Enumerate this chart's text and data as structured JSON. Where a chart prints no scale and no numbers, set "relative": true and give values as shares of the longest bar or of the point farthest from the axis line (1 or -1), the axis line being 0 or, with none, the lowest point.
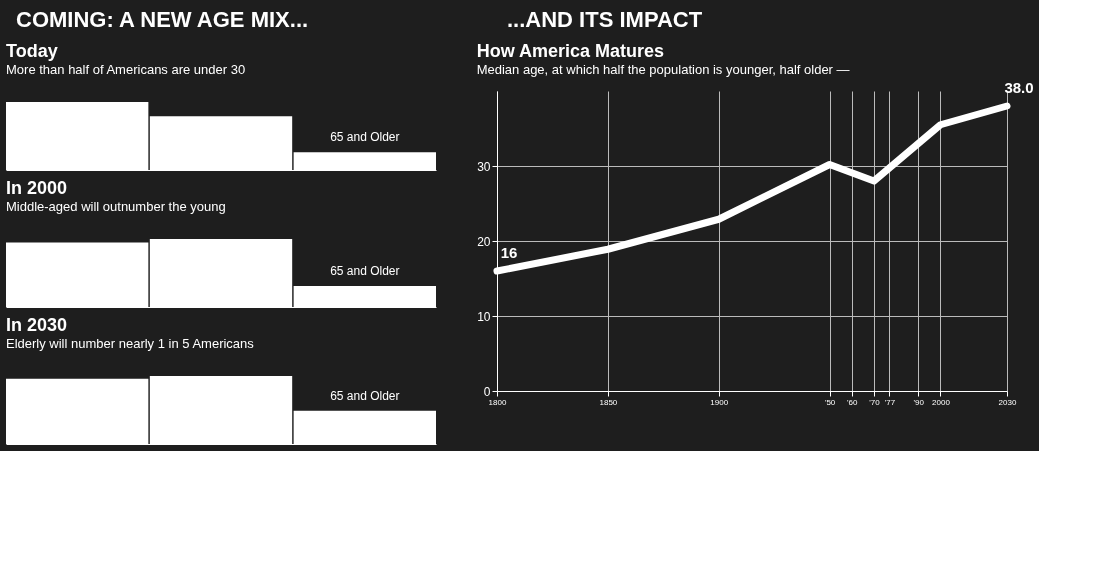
{
  "chart_data": [
    {
      "type": "bar",
      "title": "Today",
      "subtitle": "More than half of Americans are under 30",
      "annotations": [
        "COMING: A NEW AGE MIX..."
      ],
      "categories": [
        null,
        null,
        "65 and Older"
      ],
      "values": [
        1,
        0.79,
        0.26
      ],
      "color": "#ffffff",
      "relative": true,
      "tick_labels": false
    },
    {
      "type": "bar",
      "title": "In 2000",
      "subtitle": "Middle-aged will outnumber the young",
      "categories": [
        null,
        null,
        "65 and Older"
      ],
      "values": [
        0.95,
        1,
        0.31
      ],
      "color": "#ffffff",
      "relative": true,
      "tick_labels": false
    },
    {
      "type": "bar",
      "title": "In 2030",
      "subtitle": "Elderly will number nearly 1 in 5 Americans",
      "categories": [
        null,
        null,
        "65 and Older"
      ],
      "values": [
        0.96,
        1,
        0.49
      ],
      "color": "#ffffff",
      "relative": true,
      "tick_labels": false
    },
    {
      "type": "line",
      "title": "How America Matures",
      "subtitle": "Median age, at which half the population is younger, half older —",
      "annotations": [
        "...AND ITS IMPACT"
      ],
      "x": [
        1800,
        1850,
        1900,
        1950,
        1970,
        2000,
        2030
      ],
      "values": [
        16,
        18.9,
        22.9,
        30.2,
        28.0,
        35.5,
        38.0
      ],
      "value_labels": [
        "16",
        null,
        null,
        null,
        null,
        null,
        "38.0"
      ],
      "color": "#ffffff",
      "xlim": [
        1800,
        2030
      ],
      "ylim": [
        0,
        40
      ],
      "xticks": [
        1800,
        1850,
        1900,
        {
          "value": 1950,
          "label": "'50"
        },
        {
          "value": 1960,
          "label": "'60"
        },
        {
          "value": 1970,
          "label": "'70"
        },
        {
          "value": 1977,
          "label": "'77"
        },
        {
          "value": 1990,
          "label": "'90"
        },
        2000,
        2030
      ],
      "yticks": [
        0,
        10,
        20,
        30
      ],
      "grid": true,
      "marker": "none",
      "line_style": "solid"
    }
  ]
}
